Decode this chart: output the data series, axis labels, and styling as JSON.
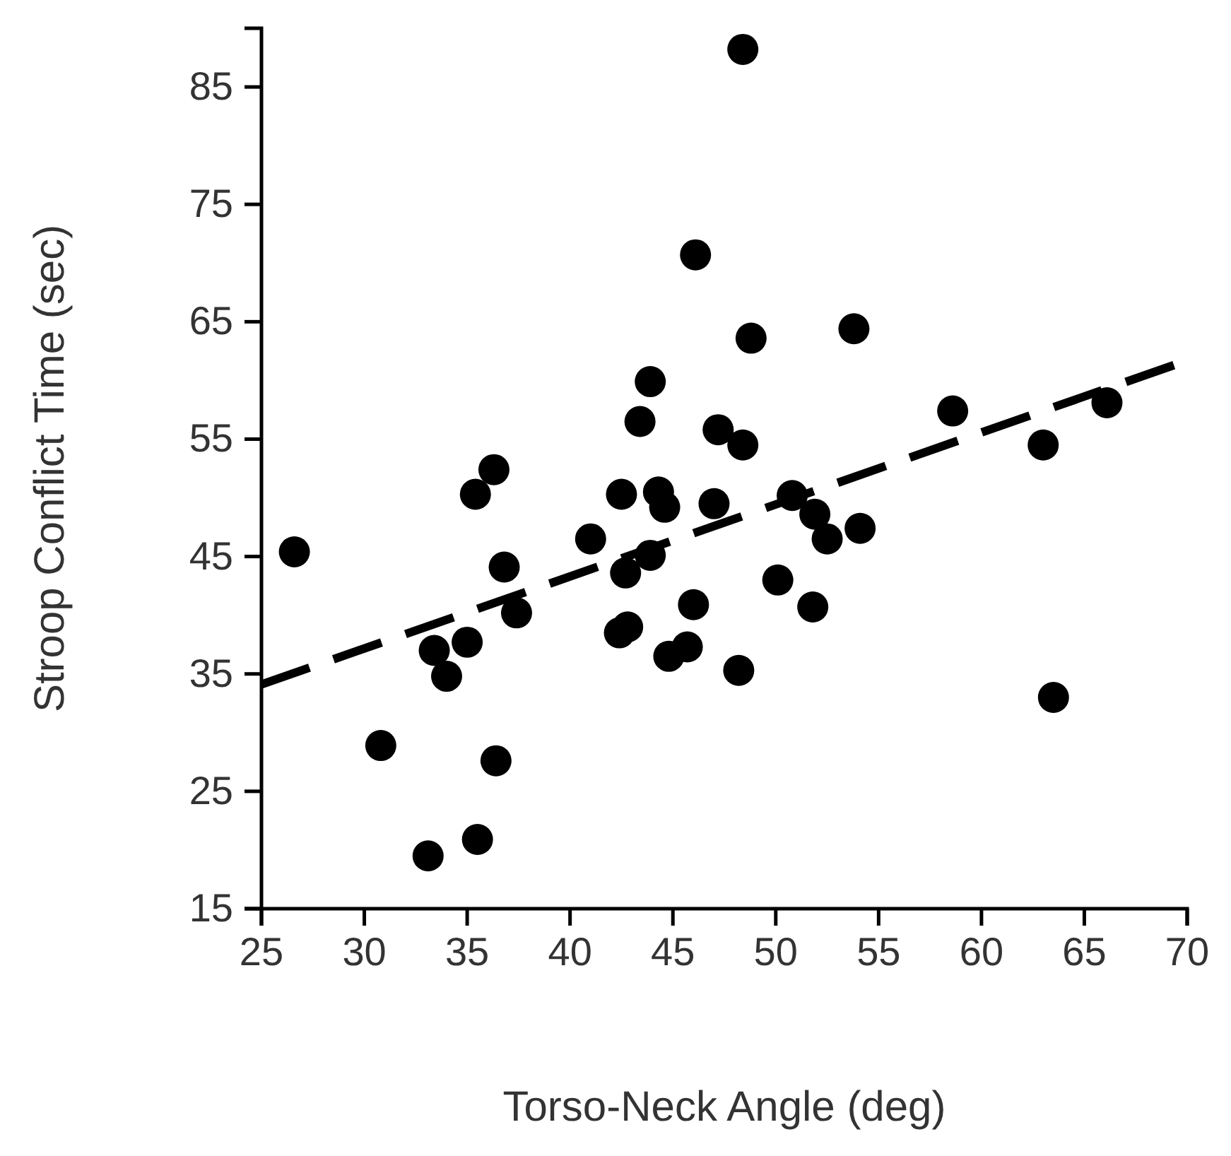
{
  "chart_data": {
    "type": "scatter",
    "xlabel": "Torso-Neck Angle (deg)",
    "ylabel": "Stroop Conflict Time (sec)",
    "xlim": [
      25,
      70
    ],
    "ylim": [
      15,
      90
    ],
    "xticks": [
      25,
      30,
      35,
      40,
      45,
      50,
      55,
      60,
      65,
      70
    ],
    "yticks": [
      15,
      25,
      35,
      45,
      55,
      65,
      75,
      85
    ],
    "grid": false,
    "series": [
      {
        "color": "#000000",
        "marker": "circle",
        "x": [
          26.6,
          30.8,
          33.1,
          33.4,
          34.0,
          35.0,
          35.4,
          35.5,
          36.3,
          36.4,
          36.8,
          37.4,
          41.0,
          42.5,
          42.7,
          42.4,
          42.8,
          43.4,
          43.9,
          43.9,
          44.3,
          44.6,
          44.8,
          45.7,
          46.0,
          46.1,
          47.0,
          47.2,
          48.2,
          48.4,
          48.4,
          48.8,
          50.1,
          50.8,
          51.8,
          51.9,
          52.5,
          53.8,
          54.1,
          58.6,
          63.0,
          63.5,
          66.1
        ],
        "values": [
          45.4,
          28.9,
          19.5,
          37.0,
          34.8,
          37.7,
          50.3,
          20.9,
          52.4,
          27.6,
          44.1,
          40.2,
          46.5,
          50.3,
          43.6,
          38.5,
          39.0,
          56.5,
          59.9,
          45.1,
          50.5,
          49.2,
          36.5,
          37.3,
          40.9,
          70.7,
          49.5,
          55.8,
          35.3,
          54.5,
          88.2,
          63.6,
          43.0,
          50.2,
          40.7,
          48.6,
          46.5,
          64.4,
          47.4,
          57.4,
          54.5,
          33.0,
          58.1
        ]
      },
      {
        "type": "line",
        "color": "#000000",
        "line_style": "dashed",
        "x": [
          25,
          70
        ],
        "values": [
          34.1,
          61.7
        ]
      }
    ]
  }
}
